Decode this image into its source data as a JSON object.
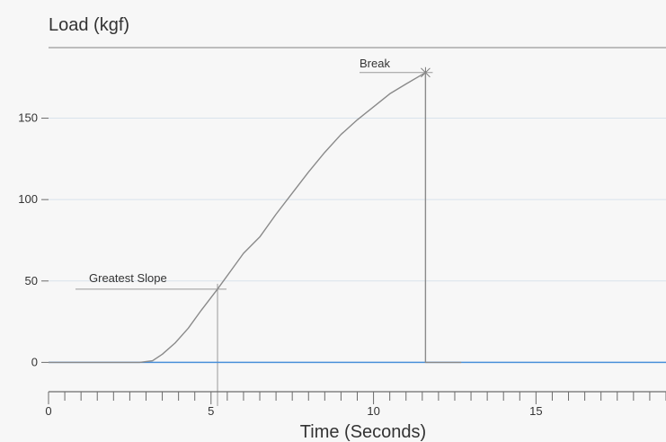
{
  "chart_data": {
    "type": "line",
    "title": "",
    "ylabel": "Load (kgf)",
    "xlabel": "Time (Seconds)",
    "xlim": [
      0,
      19
    ],
    "ylim": [
      -18,
      195
    ],
    "x_ticks": [
      0,
      5,
      10,
      15
    ],
    "y_ticks": [
      0,
      50,
      100,
      150
    ],
    "x_minor_tick_step": 0.5,
    "grid": {
      "horizontal": true,
      "vertical": false
    },
    "colors": {
      "curve": "#8a8a8a",
      "baseline": "#4a90d9",
      "grid": "#d9e3ec",
      "axis": "#6b6b6b"
    },
    "series": [
      {
        "values": [
          [
            0,
            0
          ],
          [
            2.8,
            0
          ],
          [
            3.2,
            1
          ],
          [
            3.5,
            5
          ],
          [
            3.9,
            12
          ],
          [
            4.3,
            21
          ],
          [
            4.7,
            32
          ],
          [
            5.2,
            45
          ],
          [
            5.6,
            56
          ],
          [
            6.0,
            67
          ],
          [
            6.5,
            77
          ],
          [
            7.0,
            91
          ],
          [
            7.5,
            104
          ],
          [
            8.0,
            117
          ],
          [
            8.5,
            129
          ],
          [
            9.0,
            140
          ],
          [
            9.5,
            149
          ],
          [
            10.0,
            157
          ],
          [
            10.5,
            165
          ],
          [
            11.0,
            171
          ],
          [
            11.6,
            178
          ],
          [
            11.6,
            0
          ],
          [
            12.7,
            0
          ]
        ]
      }
    ],
    "annotations": [
      {
        "label": "Greatest Slope",
        "x": 5.2,
        "y": 45
      },
      {
        "label": "Break",
        "x": 11.6,
        "y": 178
      }
    ]
  }
}
